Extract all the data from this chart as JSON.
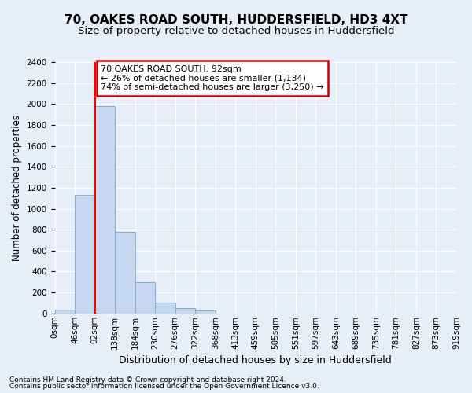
{
  "title": "70, OAKES ROAD SOUTH, HUDDERSFIELD, HD3 4XT",
  "subtitle": "Size of property relative to detached houses in Huddersfield",
  "xlabel": "Distribution of detached houses by size in Huddersfield",
  "ylabel": "Number of detached properties",
  "bar_values": [
    35,
    1130,
    1980,
    780,
    300,
    100,
    50,
    30,
    0,
    0,
    0,
    0,
    0,
    0,
    0,
    0,
    0,
    0,
    0,
    0
  ],
  "bar_labels": [
    "0sqm",
    "46sqm",
    "92sqm",
    "138sqm",
    "184sqm",
    "230sqm",
    "276sqm",
    "322sqm",
    "368sqm",
    "413sqm",
    "459sqm",
    "505sqm",
    "551sqm",
    "597sqm",
    "643sqm",
    "689sqm",
    "735sqm",
    "781sqm",
    "827sqm",
    "873sqm",
    "919sqm"
  ],
  "bar_color": "#c5d8f0",
  "bar_edge_color": "#7bafd4",
  "red_line_index": 2,
  "ylim": [
    0,
    2400
  ],
  "yticks": [
    0,
    200,
    400,
    600,
    800,
    1000,
    1200,
    1400,
    1600,
    1800,
    2000,
    2200,
    2400
  ],
  "annotation_title": "70 OAKES ROAD SOUTH: 92sqm",
  "annotation_line1": "← 26% of detached houses are smaller (1,134)",
  "annotation_line2": "74% of semi-detached houses are larger (3,250) →",
  "annotation_box_facecolor": "#ffffff",
  "annotation_box_edgecolor": "#cc0000",
  "footnote1": "Contains HM Land Registry data © Crown copyright and database right 2024.",
  "footnote2": "Contains public sector information licensed under the Open Government Licence v3.0.",
  "background_color": "#e8eef8",
  "grid_color": "#ffffff",
  "title_fontsize": 11,
  "subtitle_fontsize": 9.5,
  "xlabel_fontsize": 9,
  "ylabel_fontsize": 8.5,
  "tick_fontsize": 7.5,
  "footnote_fontsize": 6.5
}
